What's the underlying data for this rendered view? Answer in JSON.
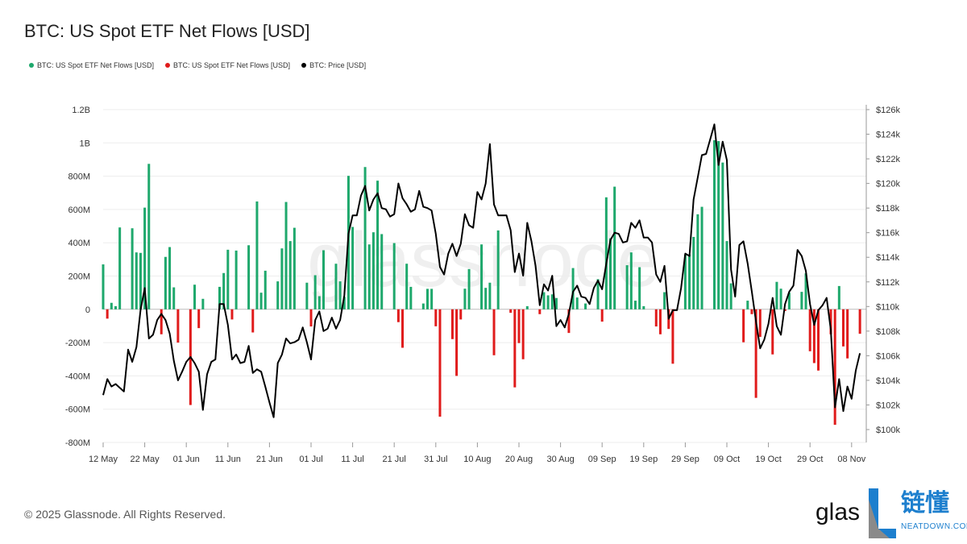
{
  "header": {
    "title": "BTC: US Spot ETF Net Flows [USD]"
  },
  "legend": [
    {
      "label": "BTC: US Spot ETF Net Flows [USD]",
      "color": "#1ea86c"
    },
    {
      "label": "BTC: US Spot ETF Net Flows [USD]",
      "color": "#e01b1b"
    },
    {
      "label": "BTC: Price [USD]",
      "color": "#000000"
    }
  ],
  "footer": {
    "copyright": "© 2025 Glassnode. All Rights Reserved."
  },
  "watermark": "glassnode",
  "logo": {
    "glassnode_text": "glas",
    "cn_text": "链懂",
    "en_text": "NEATDOWN.COM"
  },
  "chart_data": {
    "type": "bar+line",
    "title": "BTC: US Spot ETF Net Flows [USD]",
    "year": 2025,
    "grid": true,
    "legend_position": "top-left",
    "y_left": {
      "unit": "USD",
      "range": [
        -800000000,
        1200000000
      ],
      "ticks": [
        "-800M",
        "-600M",
        "-400M",
        "-200M",
        "0",
        "200M",
        "400M",
        "600M",
        "800M",
        "1B",
        "1.2B"
      ]
    },
    "y_right": {
      "unit": "USD",
      "range": [
        100000,
        126000
      ],
      "ticks": [
        "$100k",
        "$102k",
        "$104k",
        "$106k",
        "$108k",
        "$110k",
        "$112k",
        "$114k",
        "$116k",
        "$118k",
        "$120k",
        "$122k",
        "$124k",
        "$126k"
      ]
    },
    "x_ticks": [
      {
        "label": "12 May",
        "date": "05-12"
      },
      {
        "label": "22 May",
        "date": "05-22"
      },
      {
        "label": "01 Jun",
        "date": "06-01"
      },
      {
        "label": "11 Jun",
        "date": "06-11"
      },
      {
        "label": "21 Jun",
        "date": "06-21"
      },
      {
        "label": "01 Jul",
        "date": "07-01"
      },
      {
        "label": "11 Jul",
        "date": "07-11"
      },
      {
        "label": "21 Jul",
        "date": "07-21"
      },
      {
        "label": "31 Jul",
        "date": "07-31"
      },
      {
        "label": "10 Aug",
        "date": "08-10"
      },
      {
        "label": "20 Aug",
        "date": "08-20"
      },
      {
        "label": "30 Aug",
        "date": "08-30"
      },
      {
        "label": "09 Sep",
        "date": "09-09"
      },
      {
        "label": "19 Sep",
        "date": "09-19"
      },
      {
        "label": "29 Sep",
        "date": "09-29"
      },
      {
        "label": "09 Oct",
        "date": "10-09"
      },
      {
        "label": "19 Oct",
        "date": "10-19"
      },
      {
        "label": "29 Oct",
        "date": "10-29"
      },
      {
        "label": "08 Nov",
        "date": "11-08"
      }
    ],
    "positive_color": "#1ea86c",
    "negative_color": "#e01b1b",
    "price_color": "#000000",
    "flows_musd": [
      [
        "05-12",
        270
      ],
      [
        "05-13",
        -56
      ],
      [
        "05-14",
        39
      ],
      [
        "05-15",
        19
      ],
      [
        "05-16",
        492
      ],
      [
        "05-19",
        487
      ],
      [
        "05-20",
        342
      ],
      [
        "05-21",
        339
      ],
      [
        "05-22",
        611
      ],
      [
        "05-23",
        874
      ],
      [
        "05-26",
        -150
      ],
      [
        "05-27",
        315
      ],
      [
        "05-28",
        374
      ],
      [
        "05-29",
        132
      ],
      [
        "05-30",
        -200
      ],
      [
        "06-02",
        -575
      ],
      [
        "06-03",
        148
      ],
      [
        "06-04",
        -113
      ],
      [
        "06-05",
        63
      ],
      [
        "06-09",
        135
      ],
      [
        "06-10",
        218
      ],
      [
        "06-11",
        358
      ],
      [
        "06-12",
        -61
      ],
      [
        "06-13",
        353
      ],
      [
        "06-16",
        385
      ],
      [
        "06-17",
        -139
      ],
      [
        "06-18",
        648
      ],
      [
        "06-19",
        100
      ],
      [
        "06-20",
        232
      ],
      [
        "06-23",
        168
      ],
      [
        "06-24",
        366
      ],
      [
        "06-25",
        645
      ],
      [
        "06-26",
        410
      ],
      [
        "06-27",
        490
      ],
      [
        "06-30",
        160
      ],
      [
        "07-01",
        -103
      ],
      [
        "07-02",
        205
      ],
      [
        "07-03",
        79
      ],
      [
        "07-04",
        355
      ],
      [
        "07-07",
        274
      ],
      [
        "07-08",
        168
      ],
      [
        "07-09",
        75
      ],
      [
        "07-10",
        802
      ],
      [
        "07-11",
        495
      ],
      [
        "07-14",
        855
      ],
      [
        "07-15",
        390
      ],
      [
        "07-16",
        463
      ],
      [
        "07-17",
        773
      ],
      [
        "07-18",
        452
      ],
      [
        "07-21",
        398
      ],
      [
        "07-22",
        -77
      ],
      [
        "07-23",
        -231
      ],
      [
        "07-24",
        274
      ],
      [
        "07-25",
        135
      ],
      [
        "07-28",
        35
      ],
      [
        "07-29",
        123
      ],
      [
        "07-30",
        123
      ],
      [
        "07-31",
        -102
      ],
      [
        "08-01",
        -645
      ],
      [
        "08-04",
        -179
      ],
      [
        "08-05",
        -400
      ],
      [
        "08-06",
        -61
      ],
      [
        "08-07",
        124
      ],
      [
        "08-08",
        242
      ],
      [
        "08-11",
        390
      ],
      [
        "08-12",
        129
      ],
      [
        "08-13",
        160
      ],
      [
        "08-14",
        -276
      ],
      [
        "08-15",
        474
      ],
      [
        "08-18",
        -21
      ],
      [
        "08-19",
        -469
      ],
      [
        "08-20",
        -203
      ],
      [
        "08-21",
        -300
      ],
      [
        "08-22",
        19
      ],
      [
        "08-25",
        -29
      ],
      [
        "08-26",
        103
      ],
      [
        "08-27",
        84
      ],
      [
        "08-28",
        90
      ],
      [
        "08-29",
        68
      ],
      [
        "09-01",
        -142
      ],
      [
        "09-02",
        248
      ],
      [
        "09-03",
        71
      ],
      [
        "09-05",
        35
      ],
      [
        "09-08",
        181
      ],
      [
        "09-09",
        -74
      ],
      [
        "09-10",
        673
      ],
      [
        "09-11",
        427
      ],
      [
        "09-12",
        737
      ],
      [
        "09-15",
        265
      ],
      [
        "09-16",
        342
      ],
      [
        "09-17",
        52
      ],
      [
        "09-18",
        253
      ],
      [
        "09-19",
        19
      ],
      [
        "09-22",
        -103
      ],
      [
        "09-23",
        -150
      ],
      [
        "09-24",
        103
      ],
      [
        "09-25",
        -118
      ],
      [
        "09-26",
        -327
      ],
      [
        "09-29",
        330
      ],
      [
        "09-30",
        330
      ],
      [
        "10-01",
        435
      ],
      [
        "10-02",
        571
      ],
      [
        "10-03",
        616
      ],
      [
        "10-06",
        1016
      ],
      [
        "10-07",
        1011
      ],
      [
        "10-08",
        882
      ],
      [
        "10-09",
        410
      ],
      [
        "10-10",
        156
      ],
      [
        "10-13",
        -198
      ],
      [
        "10-14",
        52
      ],
      [
        "10-15",
        -29
      ],
      [
        "10-16",
        -532
      ],
      [
        "10-17",
        -166
      ],
      [
        "10-20",
        -271
      ],
      [
        "10-21",
        165
      ],
      [
        "10-22",
        124
      ],
      [
        "10-23",
        -10
      ],
      [
        "10-24",
        100
      ],
      [
        "10-27",
        105
      ],
      [
        "10-28",
        216
      ],
      [
        "10-29",
        -252
      ],
      [
        "10-30",
        -323
      ],
      [
        "10-31",
        -368
      ],
      [
        "11-03",
        -150
      ],
      [
        "11-04",
        -694
      ],
      [
        "11-05",
        140
      ],
      [
        "11-06",
        -223
      ],
      [
        "11-07",
        -295
      ],
      [
        "11-10",
        -147
      ]
    ],
    "price_kusd": [
      [
        "05-12",
        102.8
      ],
      [
        "05-13",
        104.1
      ],
      [
        "05-14",
        103.5
      ],
      [
        "05-15",
        103.7
      ],
      [
        "05-16",
        103.4
      ],
      [
        "05-17",
        103.1
      ],
      [
        "05-18",
        106.5
      ],
      [
        "05-19",
        105.5
      ],
      [
        "05-20",
        106.7
      ],
      [
        "05-21",
        109.7
      ],
      [
        "05-22",
        111.5
      ],
      [
        "05-23",
        107.4
      ],
      [
        "05-24",
        107.7
      ],
      [
        "05-25",
        108.9
      ],
      [
        "05-26",
        109.4
      ],
      [
        "05-27",
        108.9
      ],
      [
        "05-28",
        107.8
      ],
      [
        "05-29",
        105.6
      ],
      [
        "05-30",
        104.0
      ],
      [
        "05-31",
        104.7
      ],
      [
        "06-01",
        105.5
      ],
      [
        "06-02",
        105.9
      ],
      [
        "06-03",
        105.4
      ],
      [
        "06-04",
        104.7
      ],
      [
        "06-05",
        101.6
      ],
      [
        "06-06",
        104.5
      ],
      [
        "06-07",
        105.5
      ],
      [
        "06-08",
        105.7
      ],
      [
        "06-09",
        110.2
      ],
      [
        "06-10",
        110.2
      ],
      [
        "06-11",
        108.5
      ],
      [
        "06-12",
        105.7
      ],
      [
        "06-13",
        106.1
      ],
      [
        "06-14",
        105.4
      ],
      [
        "06-15",
        105.5
      ],
      [
        "06-16",
        106.8
      ],
      [
        "06-17",
        104.6
      ],
      [
        "06-18",
        104.9
      ],
      [
        "06-19",
        104.7
      ],
      [
        "06-20",
        103.5
      ],
      [
        "06-21",
        102.2
      ],
      [
        "06-22",
        101.0
      ],
      [
        "06-23",
        105.4
      ],
      [
        "06-24",
        106.1
      ],
      [
        "06-25",
        107.4
      ],
      [
        "06-26",
        107.0
      ],
      [
        "06-27",
        107.1
      ],
      [
        "06-28",
        107.3
      ],
      [
        "06-29",
        108.3
      ],
      [
        "06-30",
        107.1
      ],
      [
        "07-01",
        105.7
      ],
      [
        "07-02",
        108.9
      ],
      [
        "07-03",
        109.6
      ],
      [
        "07-04",
        108.0
      ],
      [
        "07-05",
        108.2
      ],
      [
        "07-06",
        109.1
      ],
      [
        "07-07",
        108.2
      ],
      [
        "07-08",
        108.9
      ],
      [
        "07-09",
        110.9
      ],
      [
        "07-10",
        115.9
      ],
      [
        "07-11",
        117.4
      ],
      [
        "07-12",
        117.4
      ],
      [
        "07-13",
        119.0
      ],
      [
        "07-14",
        119.8
      ],
      [
        "07-15",
        117.8
      ],
      [
        "07-16",
        118.7
      ],
      [
        "07-17",
        119.2
      ],
      [
        "07-18",
        118.0
      ],
      [
        "07-19",
        117.9
      ],
      [
        "07-20",
        117.3
      ],
      [
        "07-21",
        117.5
      ],
      [
        "07-22",
        120.0
      ],
      [
        "07-23",
        118.8
      ],
      [
        "07-24",
        118.3
      ],
      [
        "07-25",
        117.7
      ],
      [
        "07-26",
        117.9
      ],
      [
        "07-27",
        119.4
      ],
      [
        "07-28",
        118.1
      ],
      [
        "07-29",
        118.0
      ],
      [
        "07-30",
        117.8
      ],
      [
        "07-31",
        115.9
      ],
      [
        "08-01",
        113.2
      ],
      [
        "08-02",
        112.6
      ],
      [
        "08-03",
        114.3
      ],
      [
        "08-04",
        115.1
      ],
      [
        "08-05",
        114.1
      ],
      [
        "08-06",
        115.1
      ],
      [
        "08-07",
        117.5
      ],
      [
        "08-08",
        116.6
      ],
      [
        "08-09",
        116.4
      ],
      [
        "08-10",
        119.3
      ],
      [
        "08-11",
        118.7
      ],
      [
        "08-12",
        120.0
      ],
      [
        "08-13",
        123.2
      ],
      [
        "08-14",
        118.3
      ],
      [
        "08-15",
        117.4
      ],
      [
        "08-16",
        117.4
      ],
      [
        "08-17",
        117.4
      ],
      [
        "08-18",
        116.2
      ],
      [
        "08-19",
        112.8
      ],
      [
        "08-20",
        114.3
      ],
      [
        "08-21",
        112.5
      ],
      [
        "08-22",
        116.8
      ],
      [
        "08-23",
        115.3
      ],
      [
        "08-24",
        113.3
      ],
      [
        "08-25",
        110.1
      ],
      [
        "08-26",
        111.8
      ],
      [
        "08-27",
        111.3
      ],
      [
        "08-28",
        112.5
      ],
      [
        "08-29",
        108.4
      ],
      [
        "08-30",
        108.9
      ],
      [
        "08-31",
        108.3
      ],
      [
        "09-01",
        109.4
      ],
      [
        "09-02",
        111.2
      ],
      [
        "09-03",
        111.7
      ],
      [
        "09-04",
        110.8
      ],
      [
        "09-05",
        110.7
      ],
      [
        "09-06",
        110.2
      ],
      [
        "09-07",
        111.5
      ],
      [
        "09-08",
        112.1
      ],
      [
        "09-09",
        111.4
      ],
      [
        "09-10",
        113.5
      ],
      [
        "09-11",
        115.4
      ],
      [
        "09-12",
        116.0
      ],
      [
        "09-13",
        115.9
      ],
      [
        "09-14",
        115.2
      ],
      [
        "09-15",
        115.3
      ],
      [
        "09-16",
        116.8
      ],
      [
        "09-17",
        116.4
      ],
      [
        "09-18",
        117.0
      ],
      [
        "09-19",
        115.6
      ],
      [
        "09-20",
        115.6
      ],
      [
        "09-21",
        115.2
      ],
      [
        "09-22",
        112.6
      ],
      [
        "09-23",
        112.0
      ],
      [
        "09-24",
        113.3
      ],
      [
        "09-25",
        109.0
      ],
      [
        "09-26",
        109.7
      ],
      [
        "09-27",
        109.7
      ],
      [
        "09-28",
        111.5
      ],
      [
        "09-29",
        114.3
      ],
      [
        "09-30",
        114.1
      ],
      [
        "10-01",
        118.7
      ],
      [
        "10-02",
        120.5
      ],
      [
        "10-03",
        122.3
      ],
      [
        "10-04",
        122.4
      ],
      [
        "10-05",
        123.6
      ],
      [
        "10-06",
        124.8
      ],
      [
        "10-07",
        121.5
      ],
      [
        "10-08",
        123.4
      ],
      [
        "10-09",
        121.9
      ],
      [
        "10-10",
        113.0
      ],
      [
        "10-11",
        110.8
      ],
      [
        "10-12",
        115.0
      ],
      [
        "10-13",
        115.3
      ],
      [
        "10-14",
        113.5
      ],
      [
        "10-15",
        111.2
      ],
      [
        "10-16",
        108.8
      ],
      [
        "10-17",
        106.6
      ],
      [
        "10-18",
        107.3
      ],
      [
        "10-19",
        108.6
      ],
      [
        "10-20",
        110.7
      ],
      [
        "10-21",
        108.4
      ],
      [
        "10-22",
        107.7
      ],
      [
        "10-23",
        110.2
      ],
      [
        "10-24",
        111.2
      ],
      [
        "10-25",
        111.7
      ],
      [
        "10-26",
        114.6
      ],
      [
        "10-27",
        114.1
      ],
      [
        "10-28",
        112.9
      ],
      [
        "10-29",
        110.2
      ],
      [
        "10-30",
        108.5
      ],
      [
        "10-31",
        109.7
      ],
      [
        "11-01",
        110.1
      ],
      [
        "11-02",
        110.7
      ],
      [
        "11-03",
        108.1
      ],
      [
        "11-04",
        101.8
      ],
      [
        "11-05",
        104.1
      ],
      [
        "11-06",
        101.5
      ],
      [
        "11-07",
        103.5
      ],
      [
        "11-08",
        102.5
      ],
      [
        "11-09",
        104.8
      ],
      [
        "11-10",
        106.2
      ]
    ]
  }
}
